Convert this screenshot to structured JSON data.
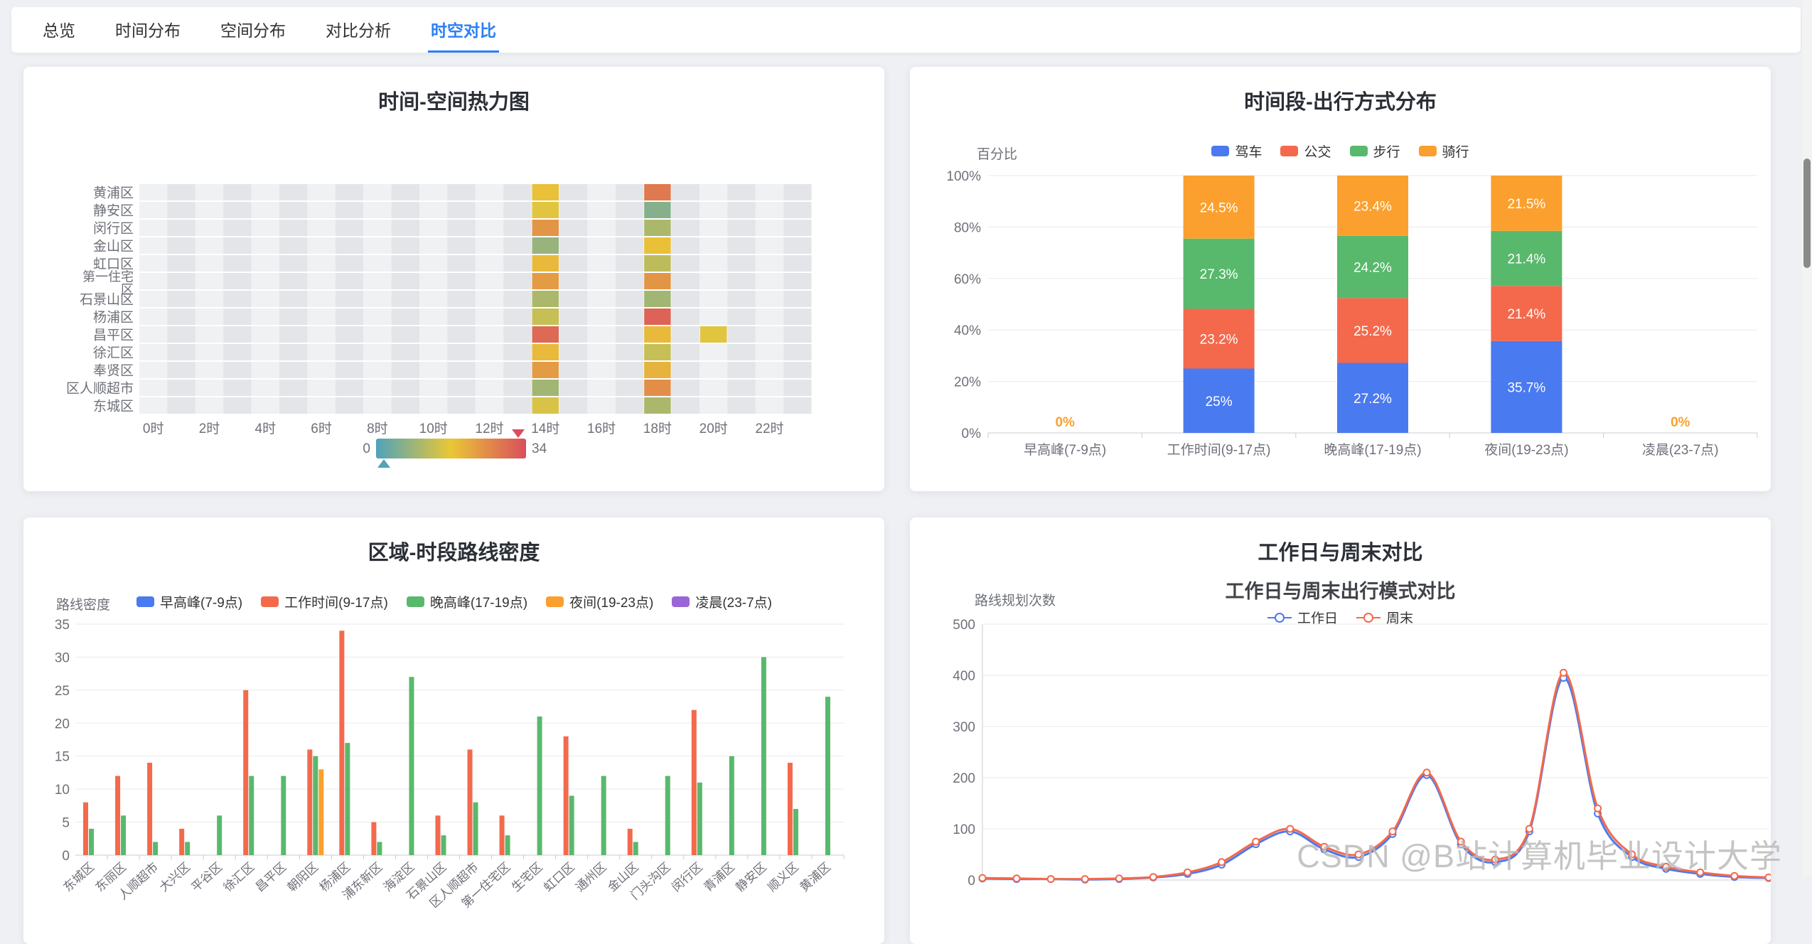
{
  "page": {
    "watermark": "CSDN @B站计算机毕业设计大学"
  },
  "nav": {
    "tabs": [
      {
        "label": "总览",
        "active": false
      },
      {
        "label": "时间分布",
        "active": false
      },
      {
        "label": "空间分布",
        "active": false
      },
      {
        "label": "对比分析",
        "active": false
      },
      {
        "label": "时空对比",
        "active": true
      }
    ]
  },
  "palette": {
    "accent": "#2b7ff3",
    "blue": "#4a7af0",
    "red": "#f4694c",
    "green": "#58b96c",
    "orange": "#fba02e",
    "purple": "#9a66d6"
  },
  "chart_data": [
    {
      "type": "heatmap",
      "title": "时间-空间热力图",
      "y_categories": [
        "黄浦区",
        "静安区",
        "闵行区",
        "金山区",
        "虹口区",
        "第一住宅\n区",
        "石景山区",
        "杨浦区",
        "昌平区",
        "徐汇区",
        "奉贤区",
        "区人顺超市",
        "东城区"
      ],
      "columns": 24,
      "x_labels": [
        "0时",
        "2时",
        "4时",
        "6时",
        "8时",
        "10时",
        "12时",
        "14时",
        "16时",
        "18时",
        "20时",
        "22时"
      ],
      "x_label_every": 2,
      "visual_min": 0,
      "visual_max": 34,
      "visual_min_label": "0",
      "visual_max_label": "34",
      "visual_gradient": [
        "#50a3ba",
        "#eac736",
        "#d94e5d"
      ],
      "cells": [
        [
          0,
          14,
          18
        ],
        [
          1,
          14,
          16
        ],
        [
          2,
          14,
          24
        ],
        [
          3,
          14,
          8
        ],
        [
          4,
          14,
          19
        ],
        [
          5,
          14,
          23
        ],
        [
          6,
          14,
          10
        ],
        [
          7,
          14,
          13
        ],
        [
          8,
          14,
          30
        ],
        [
          9,
          14,
          19
        ],
        [
          10,
          14,
          23
        ],
        [
          11,
          14,
          9
        ],
        [
          12,
          14,
          15
        ],
        [
          0,
          18,
          28
        ],
        [
          1,
          18,
          6
        ],
        [
          2,
          18,
          10
        ],
        [
          3,
          18,
          18
        ],
        [
          4,
          18,
          12
        ],
        [
          5,
          18,
          24
        ],
        [
          6,
          18,
          9
        ],
        [
          7,
          18,
          31
        ],
        [
          8,
          18,
          19
        ],
        [
          9,
          18,
          13
        ],
        [
          10,
          18,
          20
        ],
        [
          11,
          18,
          25
        ],
        [
          12,
          18,
          10
        ],
        [
          8,
          20,
          16
        ]
      ]
    },
    {
      "type": "stacked_bar_percent",
      "title": "时间段-出行方式分布",
      "y_name": "百分比",
      "y_ticks": [
        "0%",
        "20%",
        "40%",
        "60%",
        "80%",
        "100%"
      ],
      "categories": [
        "早高峰(7-9点)",
        "工作时间(9-17点)",
        "晚高峰(17-19点)",
        "夜间(19-23点)",
        "凌晨(23-7点)"
      ],
      "zero_label": "0%",
      "series": [
        {
          "name": "驾车",
          "color": "blue",
          "values": [
            0,
            25,
            27.2,
            35.7,
            0
          ]
        },
        {
          "name": "公交",
          "color": "red",
          "values": [
            0,
            23.2,
            25.2,
            21.4,
            0
          ]
        },
        {
          "name": "步行",
          "color": "green",
          "values": [
            0,
            27.3,
            24.2,
            21.4,
            0
          ]
        },
        {
          "name": "骑行",
          "color": "orange",
          "values": [
            0,
            24.5,
            23.4,
            21.5,
            0
          ]
        }
      ]
    },
    {
      "type": "grouped_bar",
      "title": "区域-时段路线密度",
      "y_name": "路线密度",
      "y_max": 35,
      "y_tick_step": 5,
      "categories": [
        "东城区",
        "东丽区",
        "人顺超市",
        "大兴区",
        "平谷区",
        "徐汇区",
        "昌平区",
        "朝阳区",
        "杨浦区",
        "浦东新区",
        "海淀区",
        "石景山区",
        "区人顺超市",
        "第一住宅区",
        "生宅区",
        "虹口区",
        "通州区",
        "金山区",
        "门头沟区",
        "闵行区",
        "青浦区",
        "静安区",
        "顺义区",
        "黄浦区"
      ],
      "series": [
        {
          "name": "早高峰(7-9点)",
          "color": "blue",
          "values": [
            0,
            0,
            0,
            0,
            0,
            0,
            0,
            0,
            0,
            0,
            0,
            0,
            0,
            0,
            0,
            0,
            0,
            0,
            0,
            0,
            0,
            0,
            0,
            0
          ]
        },
        {
          "name": "工作时间(9-17点)",
          "color": "red",
          "values": [
            8,
            12,
            14,
            4,
            0,
            25,
            0,
            16,
            34,
            5,
            0,
            6,
            16,
            6,
            0,
            18,
            0,
            4,
            0,
            22,
            0,
            0,
            14,
            0
          ]
        },
        {
          "name": "晚高峰(17-19点)",
          "color": "green",
          "values": [
            4,
            6,
            2,
            2,
            6,
            12,
            12,
            15,
            17,
            2,
            27,
            3,
            8,
            3,
            21,
            9,
            12,
            2,
            12,
            11,
            15,
            30,
            7,
            24
          ]
        },
        {
          "name": "夜间(19-23点)",
          "color": "orange",
          "values": [
            0,
            0,
            0,
            0,
            0,
            0,
            0,
            13,
            0,
            0,
            0,
            0,
            0,
            0,
            0,
            0,
            0,
            0,
            0,
            0,
            0,
            0,
            0,
            0
          ]
        },
        {
          "name": "凌晨(23-7点)",
          "color": "purple",
          "values": [
            0,
            0,
            0,
            0,
            0,
            0,
            0,
            0,
            0,
            0,
            0,
            0,
            0,
            0,
            0,
            0,
            0,
            0,
            0,
            0,
            0,
            0,
            0,
            0
          ]
        }
      ]
    },
    {
      "type": "line",
      "title": "工作日与周末对比",
      "chart_title": "工作日与周末出行模式对比",
      "y_name": "路线规划次数",
      "y_ticks": [
        0,
        100,
        200,
        300,
        400,
        500
      ],
      "x_points": 24,
      "series": [
        {
          "name": "工作日",
          "color": "blue",
          "values": [
            3,
            2,
            2,
            1,
            2,
            5,
            12,
            30,
            70,
            95,
            60,
            45,
            90,
            205,
            70,
            35,
            95,
            395,
            130,
            45,
            22,
            12,
            6,
            4
          ]
        },
        {
          "name": "周末",
          "color": "red",
          "values": [
            4,
            3,
            2,
            2,
            3,
            6,
            15,
            35,
            75,
            100,
            65,
            50,
            95,
            210,
            75,
            40,
            100,
            405,
            140,
            50,
            26,
            15,
            8,
            5
          ]
        }
      ]
    }
  ]
}
